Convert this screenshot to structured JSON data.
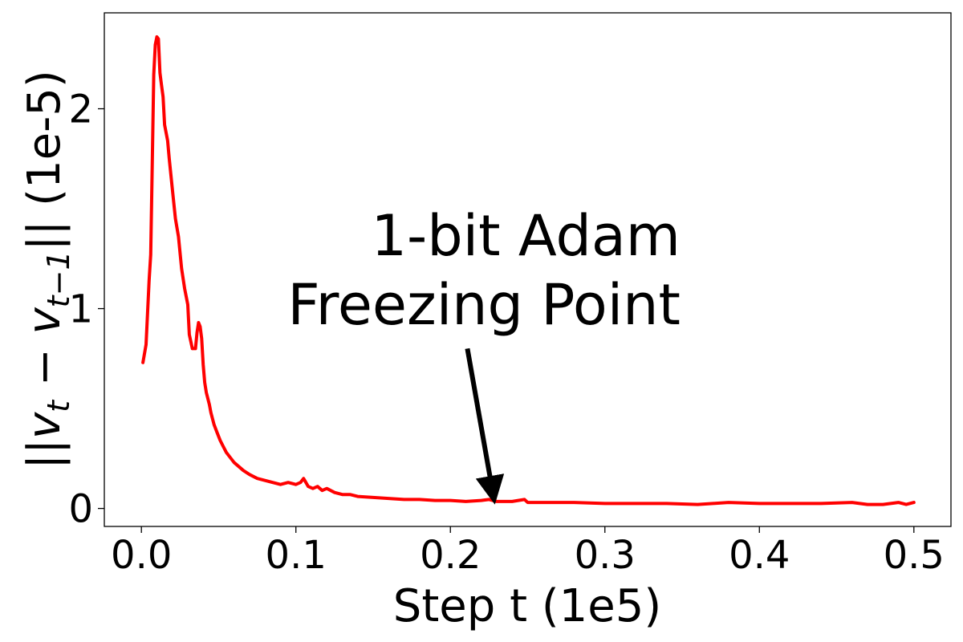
{
  "chart_data": {
    "type": "line",
    "title": "",
    "xlabel": "Step t (1e5)",
    "ylabel": {
      "norm_left": "||",
      "v1": "v",
      "sub1": "t",
      "minus": " − ",
      "v2": "v",
      "sub2": "t−1",
      "norm_right": "||",
      "unit": " (1e-5)"
    },
    "xlim": [
      -0.024,
      0.524
    ],
    "ylim": [
      -0.09,
      2.48
    ],
    "xticks": [
      0.0,
      0.1,
      0.2,
      0.3,
      0.4,
      0.5
    ],
    "xtick_labels": [
      "0.0",
      "0.1",
      "0.2",
      "0.3",
      "0.4",
      "0.5"
    ],
    "yticks": [
      0,
      1,
      2
    ],
    "ytick_labels": [
      "0",
      "1",
      "2"
    ],
    "grid": false,
    "series": [
      {
        "color": "#ff0000",
        "x": [
          0.001,
          0.003,
          0.004,
          0.005,
          0.006,
          0.007,
          0.008,
          0.009,
          0.01,
          0.011,
          0.012,
          0.013,
          0.014,
          0.015,
          0.017,
          0.018,
          0.02,
          0.022,
          0.024,
          0.026,
          0.028,
          0.03,
          0.031,
          0.033,
          0.035,
          0.036,
          0.037,
          0.038,
          0.039,
          0.04,
          0.041,
          0.042,
          0.043,
          0.044,
          0.045,
          0.047,
          0.049,
          0.051,
          0.053,
          0.055,
          0.057,
          0.06,
          0.063,
          0.066,
          0.07,
          0.075,
          0.08,
          0.085,
          0.09,
          0.095,
          0.1,
          0.103,
          0.105,
          0.108,
          0.111,
          0.114,
          0.117,
          0.12,
          0.125,
          0.13,
          0.135,
          0.14,
          0.15,
          0.16,
          0.17,
          0.18,
          0.19,
          0.2,
          0.21,
          0.22,
          0.225,
          0.23,
          0.24,
          0.248,
          0.25,
          0.26,
          0.28,
          0.3,
          0.32,
          0.34,
          0.36,
          0.37,
          0.38,
          0.4,
          0.42,
          0.44,
          0.46,
          0.47,
          0.48,
          0.485,
          0.49,
          0.495,
          0.5
        ],
        "y": [
          0.73,
          0.82,
          0.98,
          1.14,
          1.27,
          1.72,
          2.17,
          2.32,
          2.36,
          2.35,
          2.18,
          2.12,
          2.06,
          1.92,
          1.84,
          1.75,
          1.6,
          1.45,
          1.36,
          1.2,
          1.1,
          1.02,
          0.87,
          0.8,
          0.8,
          0.88,
          0.93,
          0.91,
          0.85,
          0.72,
          0.63,
          0.58,
          0.55,
          0.52,
          0.48,
          0.42,
          0.38,
          0.34,
          0.31,
          0.28,
          0.26,
          0.23,
          0.21,
          0.19,
          0.17,
          0.15,
          0.14,
          0.13,
          0.12,
          0.13,
          0.12,
          0.13,
          0.15,
          0.11,
          0.1,
          0.11,
          0.09,
          0.1,
          0.08,
          0.07,
          0.07,
          0.06,
          0.055,
          0.05,
          0.045,
          0.045,
          0.04,
          0.04,
          0.035,
          0.04,
          0.045,
          0.035,
          0.035,
          0.045,
          0.03,
          0.03,
          0.03,
          0.025,
          0.025,
          0.025,
          0.02,
          0.025,
          0.03,
          0.025,
          0.025,
          0.025,
          0.03,
          0.02,
          0.02,
          0.025,
          0.03,
          0.02,
          0.03
        ]
      }
    ],
    "annotation": {
      "lines": [
        "1-bit Adam",
        "Freezing Point"
      ],
      "arrow_from": [
        0.211,
        0.8
      ],
      "arrow_to": [
        0.228,
        0.055
      ],
      "arrow_color": "#000000"
    }
  }
}
